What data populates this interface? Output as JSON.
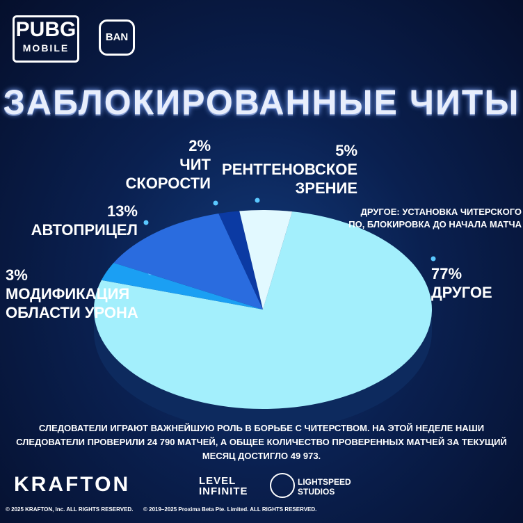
{
  "chart_data": {
    "type": "pie",
    "title": "ЗАБЛОКИРОВАННЫЕ ЧИТЫ",
    "categories": [
      "ДРУГОЕ",
      "МОДИФИКАЦИЯ ОБЛАСТИ УРОНА",
      "АВТОПРИЦЕЛ",
      "ЧИТ СКОРОСТИ",
      "РЕНТГЕНОВСКОЕ ЗРЕНИЕ"
    ],
    "values": [
      77,
      3,
      13,
      2,
      5
    ],
    "value_labels": [
      "77%",
      "3%",
      "13%",
      "2%",
      "5%"
    ],
    "colors": [
      "#a3effc",
      "#1b9ff3",
      "#2a6cdf",
      "#0b3aa3",
      "#e2f9ff"
    ],
    "annotation": "ДРУГОЕ: УСТАНОВКА ЧИТЕРСКОГО ПО, БЛОКИРОВКА ДО НАЧАЛА МАТЧА"
  },
  "header": {
    "logo_main": "PUBG",
    "logo_sub": "MOBILE",
    "badge": "BAN"
  },
  "footer": {
    "text": "СЛЕДОВАТЕЛИ ИГРАЮТ ВАЖНЕЙШУЮ РОЛЬ В БОРЬБЕ С ЧИТЕРСТВОМ. НА ЭТОЙ НЕДЕЛЕ НАШИ СЛЕДОВАТЕЛИ ПРОВЕРИЛИ 24 790 МАТЧЕЙ, А ОБЩЕЕ КОЛИЧЕСТВО ПРОВЕРЕННЫХ МАТЧЕЙ ЗА ТЕКУЩИЙ МЕСЯЦ ДОСТИГЛО 49 973.",
    "logos": [
      "KRAFTON",
      "LEVEL INFINITE",
      "LIGHTSPEED STUDIOS"
    ],
    "copyright_1": "© 2025 KRAFTON, Inc. ALL RIGHTS RESERVED.",
    "copyright_2": "© 2019–2025 Proxima Beta Pte. Limited. ALL RIGHTS RESERVED."
  }
}
